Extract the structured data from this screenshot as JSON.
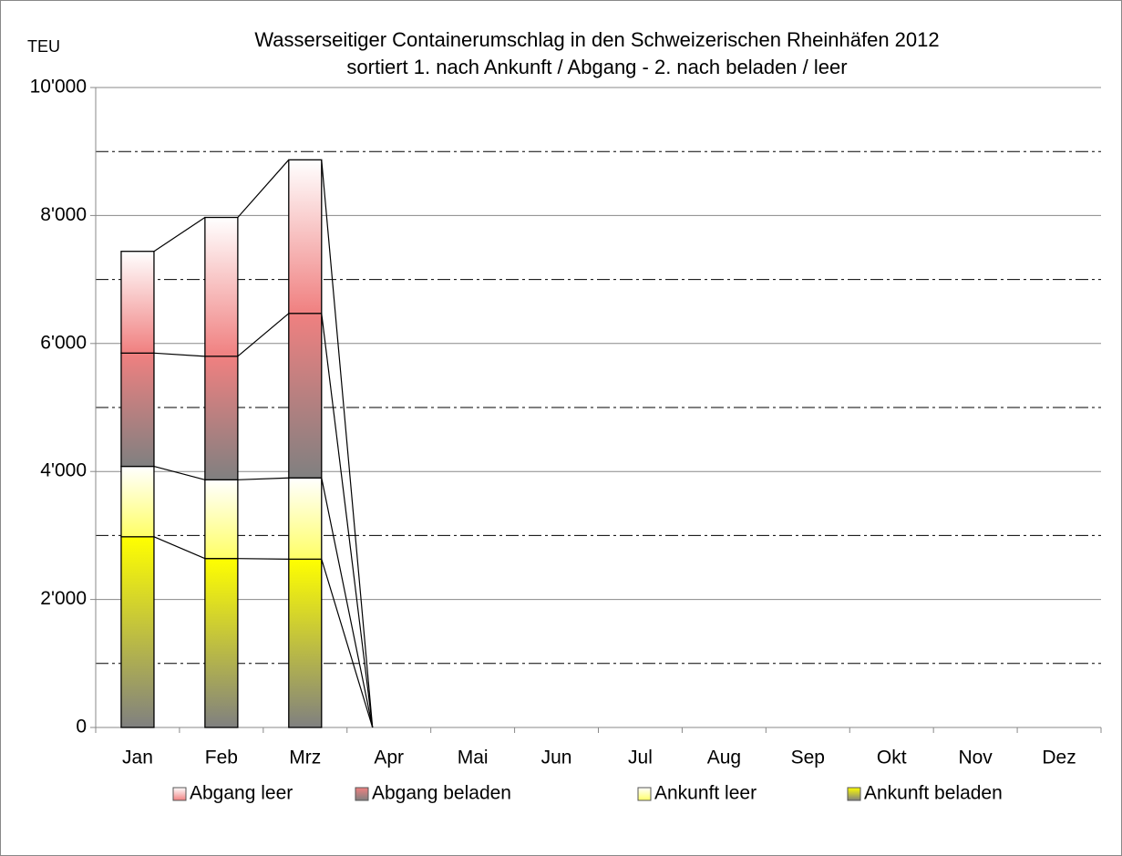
{
  "chart_data": {
    "type": "stacked_bar",
    "title": "Wasserseitiger Containerumschlag in den Schweizerischen Rheinhäfen 2012",
    "subtitle": "sortiert 1. nach Ankunft / Abgang - 2. nach beladen / leer",
    "y_label": "TEU",
    "categories": [
      "Jan",
      "Feb",
      "Mrz",
      "Apr",
      "Mai",
      "Jun",
      "Jul",
      "Aug",
      "Sep",
      "Okt",
      "Nov",
      "Dez"
    ],
    "series": [
      {
        "name": "Ankunft beladen",
        "color": "#ffff00",
        "gradient_to": "#808080",
        "values": [
          2980,
          2640,
          2630,
          0,
          null,
          null,
          null,
          null,
          null,
          null,
          null,
          null
        ]
      },
      {
        "name": "Ankunft leer",
        "color": "#ffffff",
        "gradient_to": "#ffff66",
        "values": [
          1100,
          1230,
          1270,
          0,
          null,
          null,
          null,
          null,
          null,
          null,
          null,
          null
        ]
      },
      {
        "name": "Abgang beladen",
        "color": "#f08080",
        "gradient_to": "#808080",
        "values": [
          1770,
          1930,
          2570,
          0,
          null,
          null,
          null,
          null,
          null,
          null,
          null,
          null
        ]
      },
      {
        "name": "Abgang leer",
        "color": "#ffffff",
        "gradient_to": "#f08080",
        "values": [
          1590,
          2170,
          2400,
          0,
          null,
          null,
          null,
          null,
          null,
          null,
          null,
          null
        ]
      }
    ],
    "ylim": [
      0,
      10000
    ],
    "yticks": [
      0,
      {
        "value": 2000,
        "label": "2'000"
      },
      {
        "value": 4000,
        "label": "4'000"
      },
      {
        "value": 6000,
        "label": "6'000"
      },
      {
        "value": 8000,
        "label": "8'000"
      },
      {
        "value": 10000,
        "label": "10'000"
      }
    ],
    "minor_grid": [
      1000,
      3000,
      5000,
      7000,
      9000
    ],
    "grid": true,
    "legend": "bottom"
  }
}
